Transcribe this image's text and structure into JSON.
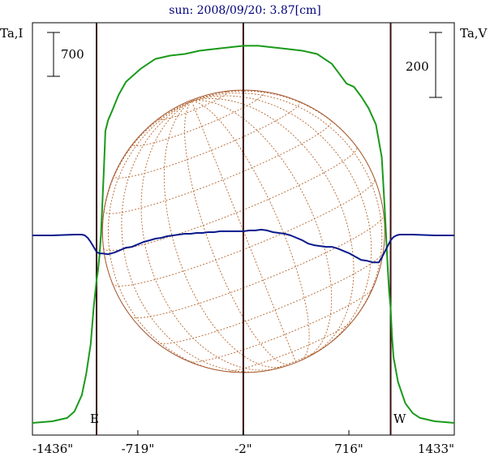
{
  "chart_data": {
    "type": "line",
    "title": "sun: 2008/09/20: 3.87[cm]",
    "left_axis_label": "Ta,I",
    "right_axis_label": "Ta,V",
    "left_scale_bar_label": "700",
    "right_scale_bar_label": "200",
    "limb_labels": {
      "east": "E",
      "west": "W"
    },
    "x_unit": "arcsec",
    "x_ticks": [
      -1436,
      -719,
      -2,
      716,
      1433
    ],
    "x_tick_labels": [
      "-1436\"",
      "-719\"",
      "-2\"",
      "716\"",
      "1433\""
    ],
    "xlim": [
      -1436,
      1433
    ],
    "vertical_lines_x": [
      -1000,
      -2,
      1000
    ],
    "grid": false,
    "series": [
      {
        "id": "intensity",
        "color": "#1a9a1a",
        "x": [
          -1436,
          -1300,
          -1200,
          -1150,
          -1100,
          -1070,
          -1040,
          -1020,
          -1000,
          -990,
          -980,
          -970,
          -960,
          -950,
          -940,
          -920,
          -900,
          -850,
          -800,
          -750,
          -700,
          -650,
          -600,
          -500,
          -400,
          -300,
          -200,
          -100,
          0,
          100,
          200,
          300,
          400,
          500,
          600,
          650,
          700,
          750,
          800,
          850,
          900,
          940,
          960,
          980,
          990,
          1000,
          1010,
          1020,
          1050,
          1100,
          1150,
          1200,
          1300,
          1433
        ],
        "y": [
          0.0,
          0.01,
          0.03,
          0.07,
          0.17,
          0.3,
          0.48,
          0.7,
          0.87,
          0.93,
          1.02,
          1.15,
          1.35,
          1.55,
          1.78,
          1.85,
          1.89,
          2.0,
          2.08,
          2.12,
          2.16,
          2.19,
          2.22,
          2.24,
          2.25,
          2.27,
          2.28,
          2.29,
          2.3,
          2.3,
          2.29,
          2.28,
          2.27,
          2.25,
          2.19,
          2.13,
          2.07,
          2.05,
          1.99,
          1.92,
          1.82,
          1.62,
          1.3,
          0.95,
          0.8,
          0.7,
          0.52,
          0.4,
          0.25,
          0.12,
          0.06,
          0.03,
          0.01,
          0.0
        ]
      },
      {
        "id": "polarization",
        "color": "#0a1a8c",
        "x": [
          -1436,
          -1300,
          -1150,
          -1100,
          -1080,
          -1060,
          -1040,
          -1020,
          -1000,
          -980,
          -960,
          -920,
          -880,
          -840,
          -800,
          -760,
          -720,
          -680,
          -640,
          -600,
          -560,
          -520,
          -480,
          -440,
          -400,
          -360,
          -320,
          -280,
          -240,
          -200,
          -160,
          -120,
          -80,
          -40,
          0,
          40,
          80,
          120,
          160,
          200,
          240,
          280,
          320,
          360,
          400,
          440,
          480,
          520,
          560,
          600,
          640,
          680,
          720,
          760,
          800,
          840,
          880,
          920,
          940,
          960,
          980,
          1000,
          1020,
          1040,
          1060,
          1080,
          1100,
          1150,
          1300,
          1433
        ],
        "y": [
          0.0,
          0.0,
          0.01,
          0.01,
          0.0,
          -0.03,
          -0.08,
          -0.14,
          -0.2,
          -0.22,
          -0.22,
          -0.23,
          -0.21,
          -0.18,
          -0.15,
          -0.14,
          -0.11,
          -0.08,
          -0.06,
          -0.04,
          -0.03,
          -0.01,
          0.0,
          0.01,
          0.02,
          0.02,
          0.03,
          0.03,
          0.04,
          0.04,
          0.05,
          0.05,
          0.05,
          0.05,
          0.05,
          0.06,
          0.06,
          0.07,
          0.06,
          0.04,
          0.03,
          0.02,
          0.0,
          -0.03,
          -0.06,
          -0.1,
          -0.12,
          -0.13,
          -0.14,
          -0.14,
          -0.16,
          -0.19,
          -0.22,
          -0.26,
          -0.3,
          -0.31,
          -0.33,
          -0.33,
          -0.27,
          -0.2,
          -0.13,
          -0.06,
          -0.02,
          0.0,
          0.01,
          0.01,
          0.01,
          0.01,
          0.0,
          0.0
        ]
      }
    ]
  }
}
